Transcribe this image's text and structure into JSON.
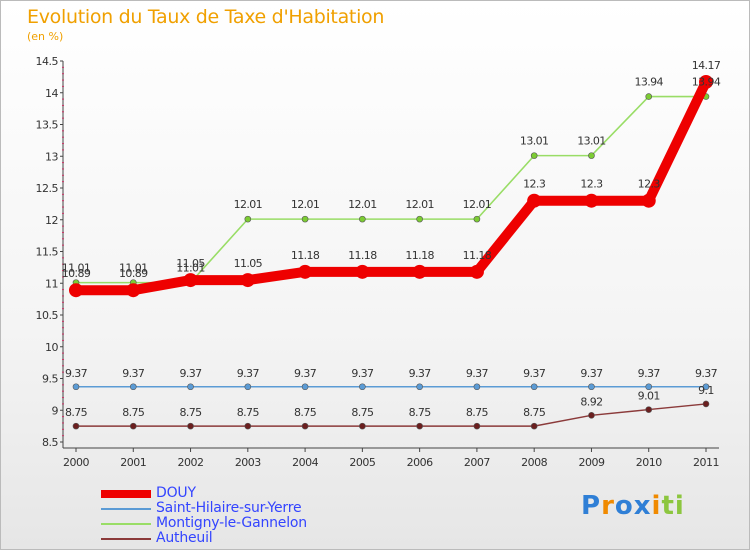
{
  "chart_data": {
    "type": "line",
    "title": "Evolution du Taux de Taxe d'Habitation",
    "unit_label": "(en %)",
    "categories": [
      "2000",
      "2001",
      "2002",
      "2003",
      "2004",
      "2005",
      "2006",
      "2007",
      "2008",
      "2009",
      "2010",
      "2011"
    ],
    "ylim": [
      8.5,
      14.5
    ],
    "yticks": [
      "8.5",
      "9",
      "9.5",
      "10",
      "10.5",
      "11",
      "11.5",
      "12",
      "12.5",
      "13",
      "13.5",
      "14",
      "14.5"
    ],
    "series": [
      {
        "name": "DOUY",
        "color": "#ee0000",
        "values": [
          10.89,
          10.89,
          11.05,
          11.05,
          11.18,
          11.18,
          11.18,
          11.18,
          12.3,
          12.3,
          12.3,
          14.17
        ],
        "labels": [
          "10.89",
          "10.89",
          "11.05",
          "11.05",
          "11.18",
          "11.18",
          "11.18",
          "11.18",
          "12.3",
          "12.3",
          "12.3",
          "14.17"
        ]
      },
      {
        "name": "Saint-Hilaire-sur-Yerre",
        "color": "#5b9bd5",
        "values": [
          9.37,
          9.37,
          9.37,
          9.37,
          9.37,
          9.37,
          9.37,
          9.37,
          9.37,
          9.37,
          9.37,
          9.37
        ],
        "labels": [
          "9.37",
          "9.37",
          "9.37",
          "9.37",
          "9.37",
          "9.37",
          "9.37",
          "9.37",
          "9.37",
          "9.37",
          "9.37",
          "9.37"
        ]
      },
      {
        "name": "Montigny-le-Gannelon",
        "color": "#99dd66",
        "values": [
          11.01,
          11.01,
          11.01,
          12.01,
          12.01,
          12.01,
          12.01,
          12.01,
          13.01,
          13.01,
          13.94,
          13.94
        ],
        "labels": [
          "11.01",
          "11.01",
          "11.01",
          "12.01",
          "12.01",
          "12.01",
          "12.01",
          "12.01",
          "13.01",
          "13.01",
          "13.94",
          "13.94"
        ]
      },
      {
        "name": "Autheuil",
        "color": "#8b3a3a",
        "values": [
          8.75,
          8.75,
          8.75,
          8.75,
          8.75,
          8.75,
          8.75,
          8.75,
          8.75,
          8.92,
          9.01,
          9.1
        ],
        "labels": [
          "8.75",
          "8.75",
          "8.75",
          "8.75",
          "8.75",
          "8.75",
          "8.75",
          "8.75",
          "8.75",
          "8.92",
          "9.01",
          "9.1"
        ]
      }
    ]
  },
  "logo": {
    "letters": [
      "P",
      "r",
      "o",
      "x",
      "i",
      "t",
      "i"
    ]
  }
}
